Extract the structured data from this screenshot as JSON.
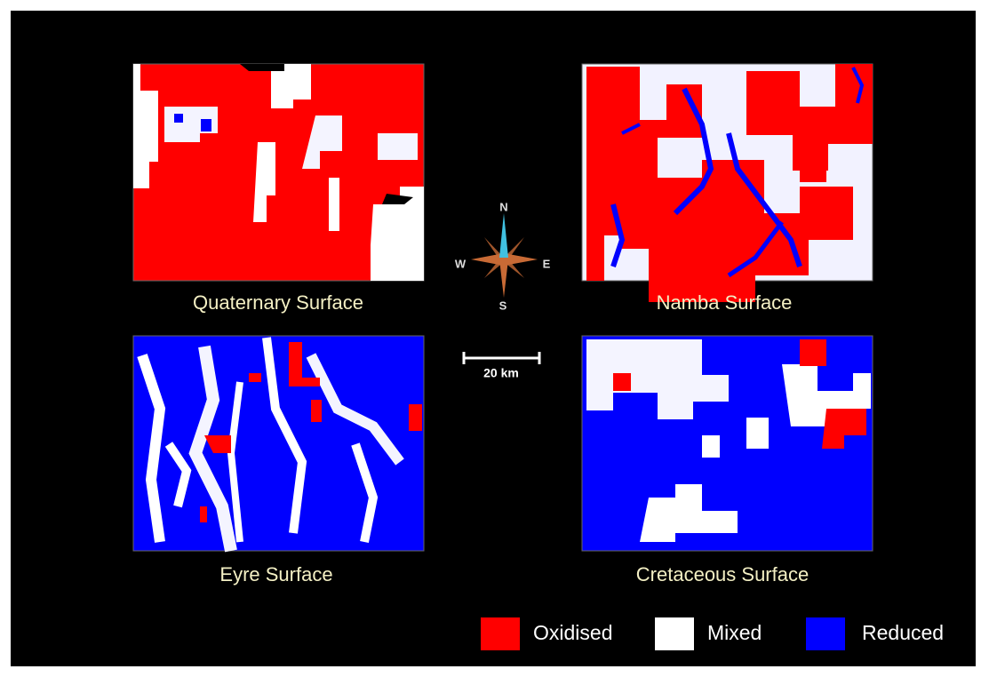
{
  "panels": [
    {
      "title": "Quaternary Surface"
    },
    {
      "title": "Namba Surface"
    },
    {
      "title": "Eyre Surface"
    },
    {
      "title": "Cretaceous Surface"
    }
  ],
  "compass": {
    "north": "N",
    "east": "E",
    "south": "S",
    "west": "W"
  },
  "scale_bar": {
    "label": "20 km"
  },
  "legend": {
    "items": [
      {
        "label": "Oxidised",
        "color": "#ff0000"
      },
      {
        "label": "Mixed",
        "color": "#ffffff"
      },
      {
        "label": "Reduced",
        "color": "#0000ff"
      }
    ]
  }
}
